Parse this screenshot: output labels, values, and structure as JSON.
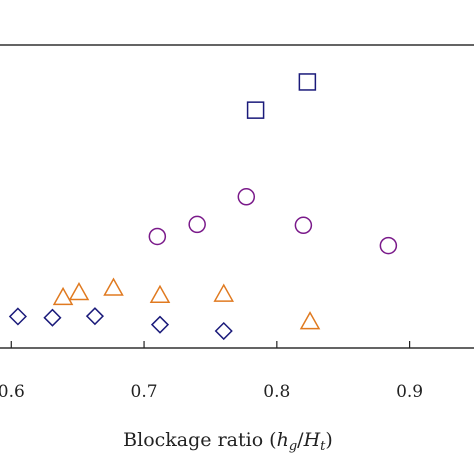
{
  "chart_data": {
    "type": "scatter",
    "title": "",
    "xlabel": "Blockage ratio (h_g/H_t)",
    "xlabel_parts": {
      "prefix": "Blockage ratio (",
      "h": "h",
      "h_sub": "g",
      "slash": "/",
      "H": "H",
      "H_sub": "t",
      "suffix": ")"
    },
    "ylabel": "",
    "xlim": [
      0.59,
      0.95
    ],
    "ylim": [
      0.0,
      1.0
    ],
    "x_ticks": [
      0.6,
      0.7,
      0.8,
      0.9
    ],
    "x_tick_labels": [
      "0.6",
      "0.7",
      "0.8",
      "0.9"
    ],
    "grid": false,
    "series": [
      {
        "marker": "square",
        "color": "#1a1a7a",
        "points": [
          {
            "x": 0.784,
            "y": 0.785
          },
          {
            "x": 0.823,
            "y": 0.878
          }
        ]
      },
      {
        "marker": "circle",
        "color": "#7a1a8a",
        "points": [
          {
            "x": 0.71,
            "y": 0.368
          },
          {
            "x": 0.74,
            "y": 0.408
          },
          {
            "x": 0.777,
            "y": 0.499
          },
          {
            "x": 0.82,
            "y": 0.405
          },
          {
            "x": 0.884,
            "y": 0.338
          }
        ]
      },
      {
        "marker": "triangle",
        "color": "#e07a20",
        "points": [
          {
            "x": 0.639,
            "y": 0.167
          },
          {
            "x": 0.651,
            "y": 0.183
          },
          {
            "x": 0.677,
            "y": 0.198
          },
          {
            "x": 0.712,
            "y": 0.174
          },
          {
            "x": 0.76,
            "y": 0.178
          },
          {
            "x": 0.825,
            "y": 0.087
          }
        ]
      },
      {
        "marker": "diamond",
        "color": "#1a1a7a",
        "points": [
          {
            "x": 0.605,
            "y": 0.104
          },
          {
            "x": 0.631,
            "y": 0.1
          },
          {
            "x": 0.663,
            "y": 0.105
          },
          {
            "x": 0.712,
            "y": 0.077
          },
          {
            "x": 0.76,
            "y": 0.056
          }
        ]
      }
    ]
  }
}
